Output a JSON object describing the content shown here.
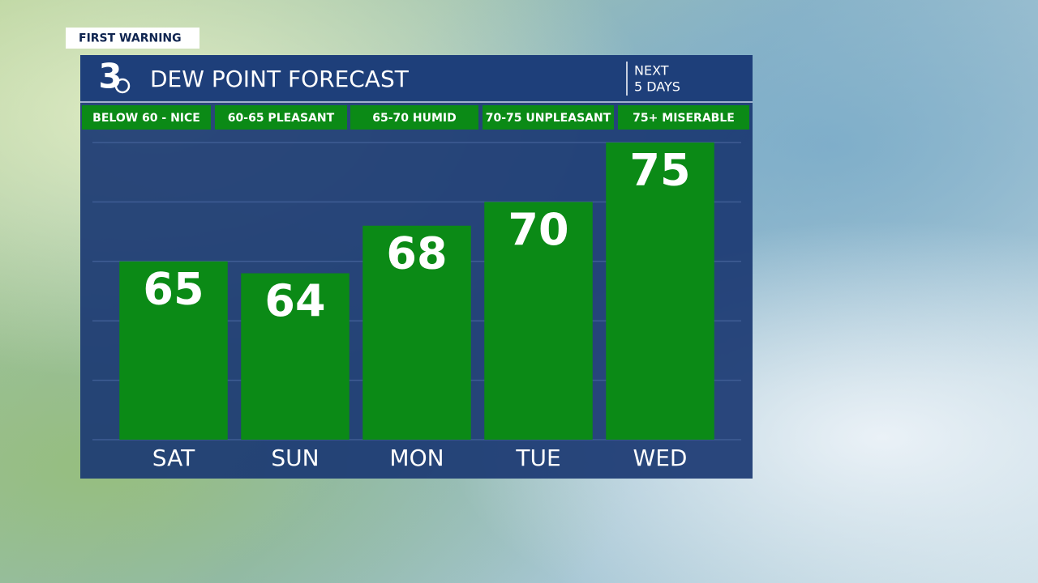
{
  "brand": "FIRST WARNING",
  "logo": "3",
  "subtitle_lines": [
    "NEXT",
    "5 DAYS"
  ],
  "bands": [
    "BELOW 60 - NICE",
    "60-65 PLEASANT",
    "65-70 HUMID",
    "70-75 UNPLEASANT",
    "75+ MISERABLE"
  ],
  "chart_data": {
    "type": "bar",
    "title": "DEW POINT FORECAST",
    "categories": [
      "SAT",
      "SUN",
      "MON",
      "TUE",
      "WED"
    ],
    "values": [
      65,
      64,
      68,
      70,
      75
    ],
    "color": "#0b8a16",
    "ylim": [
      50,
      75
    ],
    "yticks": [
      50,
      55,
      60,
      65,
      70,
      75
    ],
    "grid": true
  }
}
